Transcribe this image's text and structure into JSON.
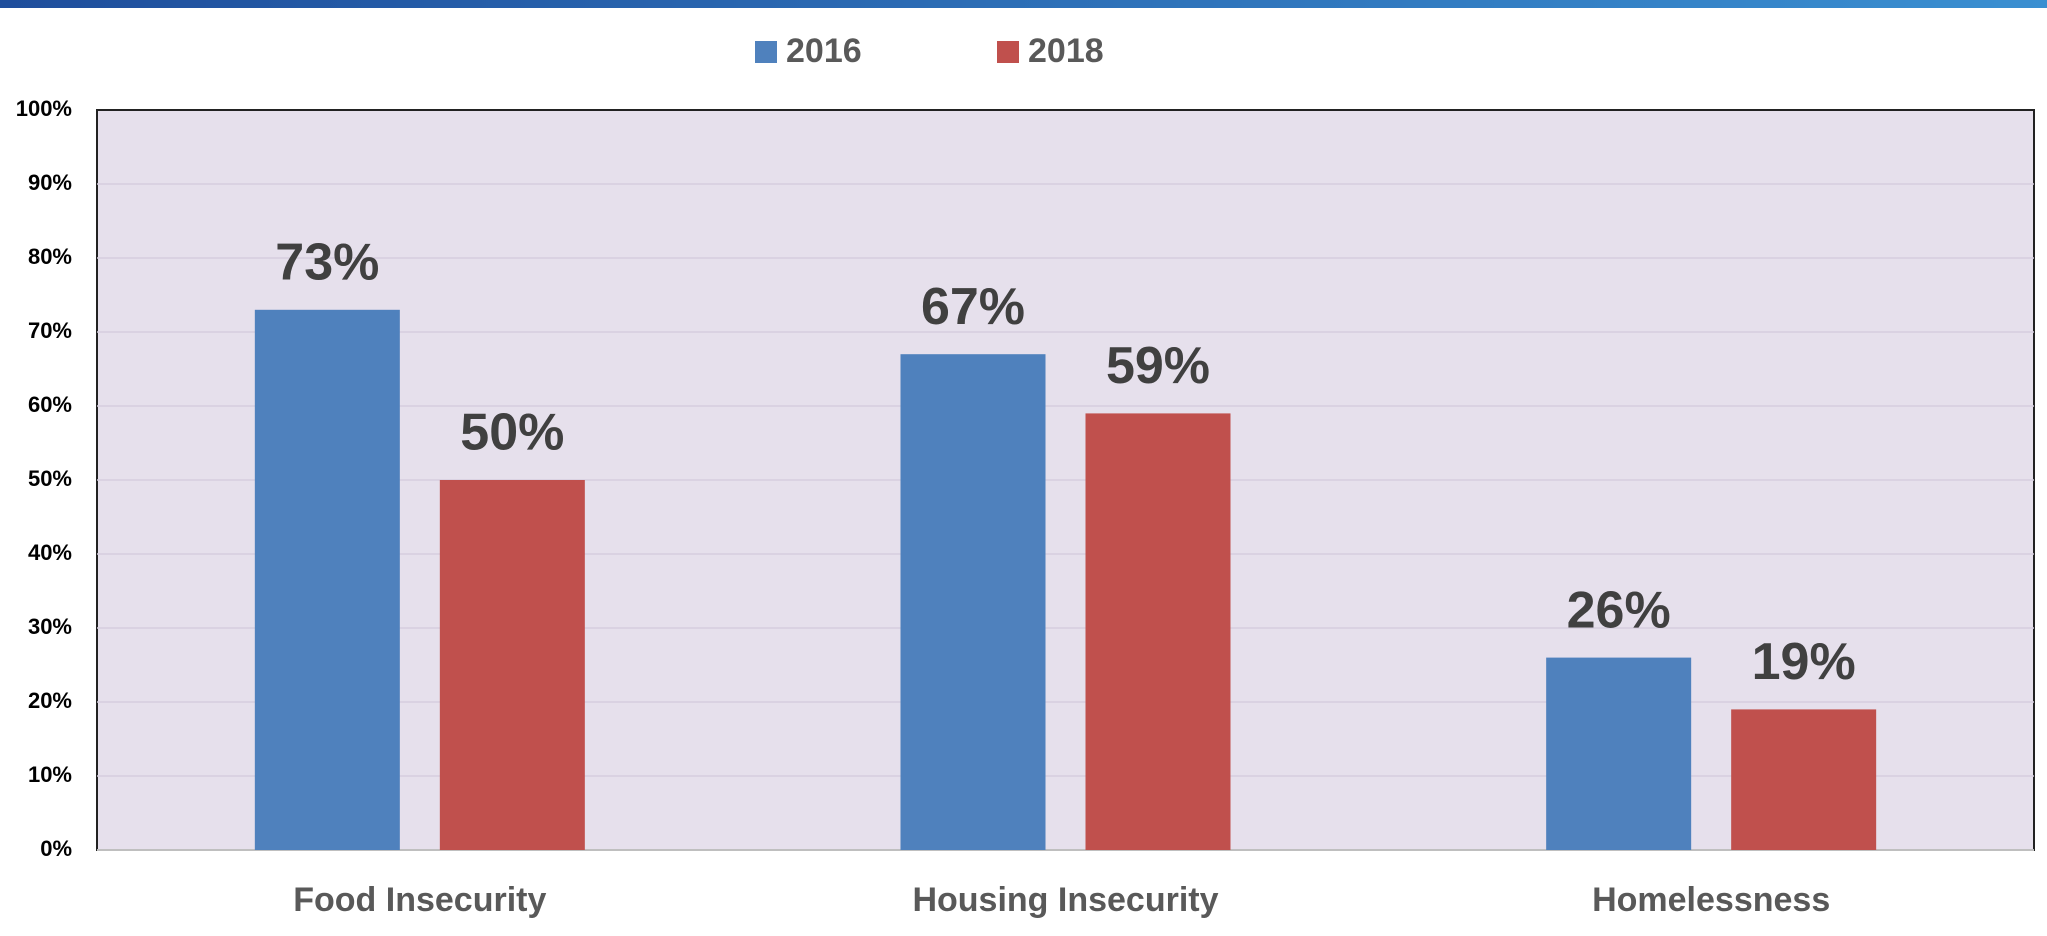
{
  "chart_data": {
    "type": "bar",
    "categories": [
      "Food Insecurity",
      "Housing Insecurity",
      "Homelessness"
    ],
    "series": [
      {
        "name": "2016",
        "color": "#4f81bd",
        "values": [
          73,
          67,
          26
        ],
        "value_labels": [
          "73%",
          "67%",
          "26%"
        ]
      },
      {
        "name": "2018",
        "color": "#c0504d",
        "values": [
          50,
          59,
          19
        ],
        "value_labels": [
          "50%",
          "59%",
          "19%"
        ]
      }
    ],
    "ylim": [
      0,
      100
    ],
    "yticks": [
      {
        "value": 0,
        "label": "0%"
      },
      {
        "value": 10,
        "label": "10%"
      },
      {
        "value": 20,
        "label": "20%"
      },
      {
        "value": 30,
        "label": "30%"
      },
      {
        "value": 40,
        "label": "40%"
      },
      {
        "value": 50,
        "label": "50%"
      },
      {
        "value": 60,
        "label": "60%"
      },
      {
        "value": 70,
        "label": "70%"
      },
      {
        "value": 80,
        "label": "80%"
      },
      {
        "value": 90,
        "label": "90%"
      },
      {
        "value": 100,
        "label": "100%"
      }
    ],
    "grid": true,
    "legend": "top"
  }
}
